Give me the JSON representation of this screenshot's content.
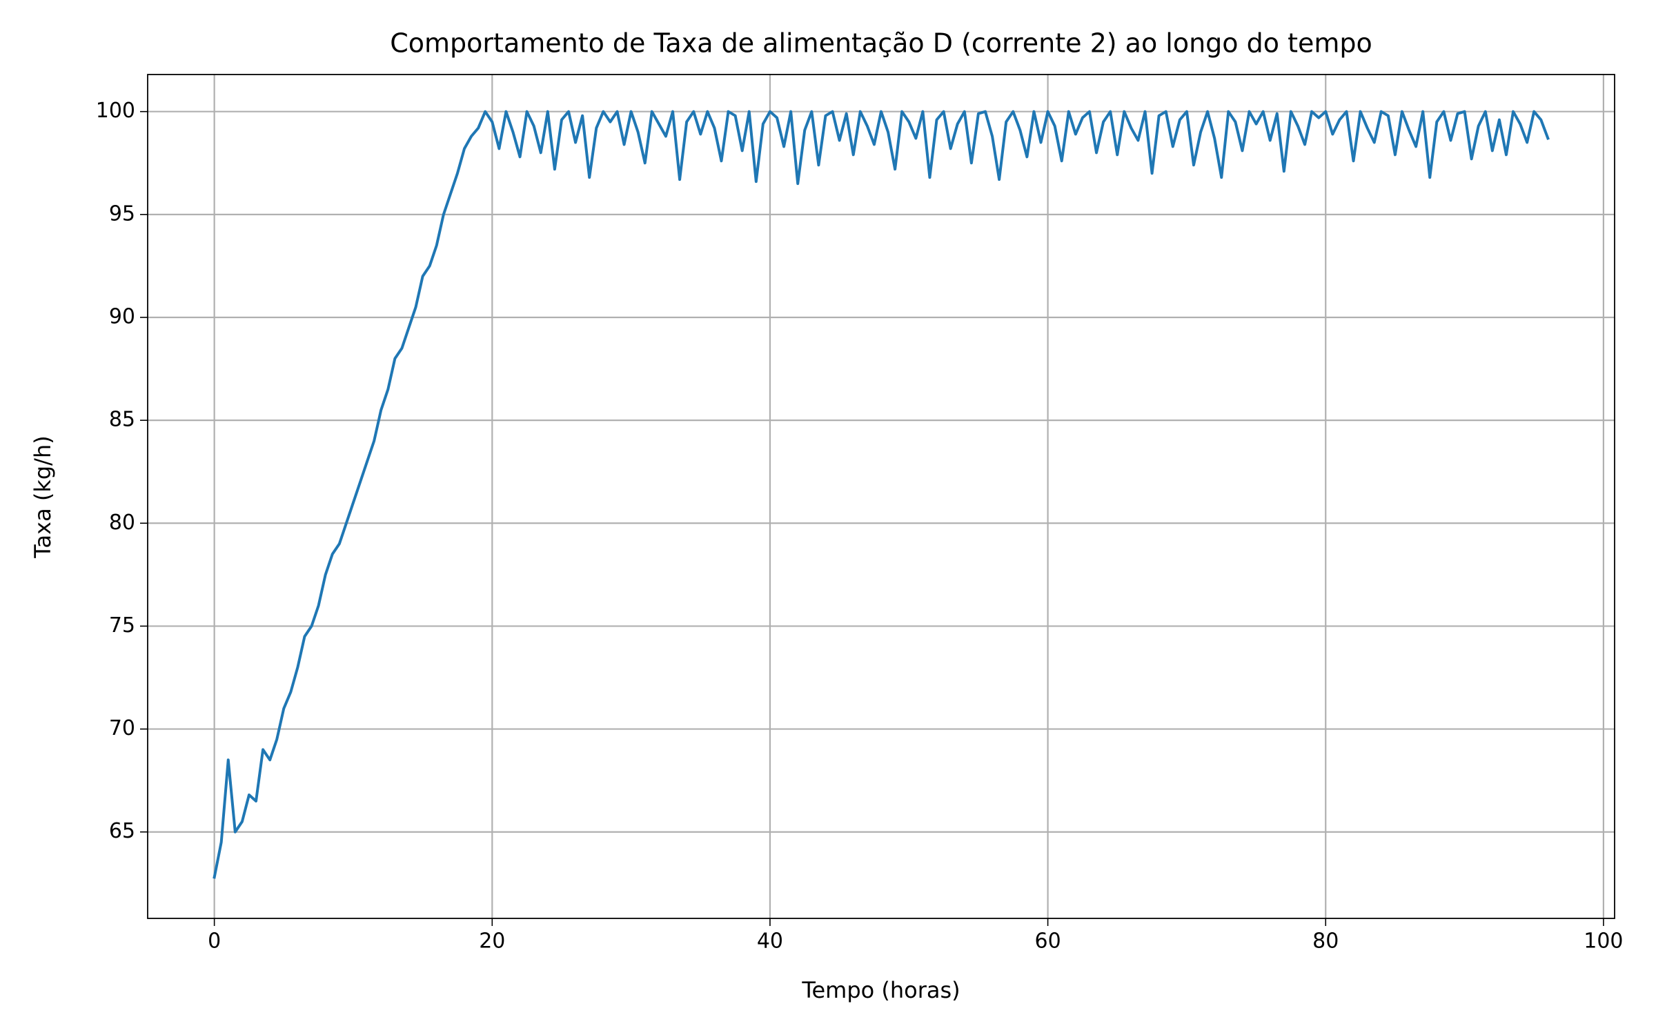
{
  "chart_data": {
    "type": "line",
    "title": "Comportamento de Taxa de alimentação D (corrente 2) ao longo do tempo",
    "xlabel": "Tempo (horas)",
    "ylabel": "Taxa (kg/h)",
    "color": "#1f77b4",
    "grid": true,
    "xlim": [
      -4.8,
      100.8
    ],
    "xticks": [
      0,
      20,
      40,
      60,
      80,
      100
    ],
    "ylim": [
      60.8,
      101.8
    ],
    "yticks": [
      65,
      70,
      75,
      80,
      85,
      90,
      95,
      100
    ],
    "x": [
      0,
      0.5,
      1,
      1.5,
      2,
      2.5,
      3,
      3.5,
      4,
      4.5,
      5,
      5.5,
      6,
      6.5,
      7,
      7.5,
      8,
      8.5,
      9,
      9.5,
      10,
      10.5,
      11,
      11.5,
      12,
      12.5,
      13,
      13.5,
      14,
      14.5,
      15,
      15.5,
      16,
      16.5,
      17,
      17.5,
      18,
      18.5,
      19,
      19.5,
      20,
      20.5,
      21,
      21.5,
      22,
      22.5,
      23,
      23.5,
      24,
      24.5,
      25,
      25.5,
      26,
      26.5,
      27,
      27.5,
      28,
      28.5,
      29,
      29.5,
      30,
      30.5,
      31,
      31.5,
      32,
      32.5,
      33,
      33.5,
      34,
      34.5,
      35,
      35.5,
      36,
      36.5,
      37,
      37.5,
      38,
      38.5,
      39,
      39.5,
      40,
      40.5,
      41,
      41.5,
      42,
      42.5,
      43,
      43.5,
      44,
      44.5,
      45,
      45.5,
      46,
      46.5,
      47,
      47.5,
      48,
      48.5,
      49,
      49.5,
      50,
      50.5,
      51,
      51.5,
      52,
      52.5,
      53,
      53.5,
      54,
      54.5,
      55,
      55.5,
      56,
      56.5,
      57,
      57.5,
      58,
      58.5,
      59,
      59.5,
      60,
      60.5,
      61,
      61.5,
      62,
      62.5,
      63,
      63.5,
      64,
      64.5,
      65,
      65.5,
      66,
      66.5,
      67,
      67.5,
      68,
      68.5,
      69,
      69.5,
      70,
      70.5,
      71,
      71.5,
      72,
      72.5,
      73,
      73.5,
      74,
      74.5,
      75,
      75.5,
      76,
      76.5,
      77,
      77.5,
      78,
      78.5,
      79,
      79.5,
      80,
      80.5,
      81,
      81.5,
      82,
      82.5,
      83,
      83.5,
      84,
      84.5,
      85,
      85.5,
      86,
      86.5,
      87,
      87.5,
      88,
      88.5,
      89,
      89.5,
      90,
      90.5,
      91,
      91.5,
      92,
      92.5,
      93,
      93.5,
      94,
      94.5,
      95,
      95.5,
      96
    ],
    "values": [
      62.8,
      64.5,
      68.5,
      65.0,
      65.5,
      66.8,
      66.5,
      69.0,
      68.5,
      69.5,
      71.0,
      71.8,
      73.0,
      74.5,
      75.0,
      76.0,
      77.5,
      78.5,
      79.0,
      80.0,
      81.0,
      82.0,
      83.0,
      84.0,
      85.5,
      86.5,
      88.0,
      88.5,
      89.5,
      90.5,
      92.0,
      92.5,
      93.5,
      95.0,
      96.0,
      97.0,
      98.2,
      98.8,
      99.2,
      100,
      99.5,
      98.2,
      100,
      99.0,
      97.8,
      100,
      99.3,
      98.0,
      100,
      97.2,
      99.6,
      100,
      98.5,
      99.8,
      96.8,
      99.2,
      100,
      99.5,
      100,
      98.4,
      100,
      99.0,
      97.5,
      100,
      99.4,
      98.8,
      100,
      96.7,
      99.5,
      100,
      98.9,
      100,
      99.2,
      97.6,
      100,
      99.8,
      98.1,
      100,
      96.6,
      99.4,
      100,
      99.7,
      98.3,
      100,
      96.5,
      99.1,
      100,
      97.4,
      99.8,
      100,
      98.6,
      99.9,
      97.9,
      100,
      99.3,
      98.4,
      100,
      99.0,
      97.2,
      100,
      99.5,
      98.7,
      100,
      96.8,
      99.6,
      100,
      98.2,
      99.4,
      100,
      97.5,
      99.9,
      100,
      98.8,
      96.7,
      99.5,
      100,
      99.1,
      97.8,
      100,
      98.5,
      100,
      99.3,
      97.6,
      100,
      98.9,
      99.7,
      100,
      98.0,
      99.5,
      100,
      97.9,
      100,
      99.2,
      98.6,
      100,
      97.0,
      99.8,
      100,
      98.3,
      99.6,
      100,
      97.4,
      99.0,
      100,
      98.7,
      96.8,
      100,
      99.5,
      98.1,
      100,
      99.4,
      100,
      98.6,
      99.9,
      97.1,
      100,
      99.3,
      98.4,
      100,
      99.7,
      100,
      98.9,
      99.6,
      100,
      97.6,
      100,
      99.2,
      98.5,
      100,
      99.8,
      97.9,
      100,
      99.1,
      98.3,
      100,
      96.8,
      99.5,
      100,
      98.6,
      99.9,
      100,
      97.7,
      99.3,
      100,
      98.1,
      99.6,
      97.9,
      100,
      99.4,
      98.5,
      100,
      99.6,
      98.7
    ]
  }
}
